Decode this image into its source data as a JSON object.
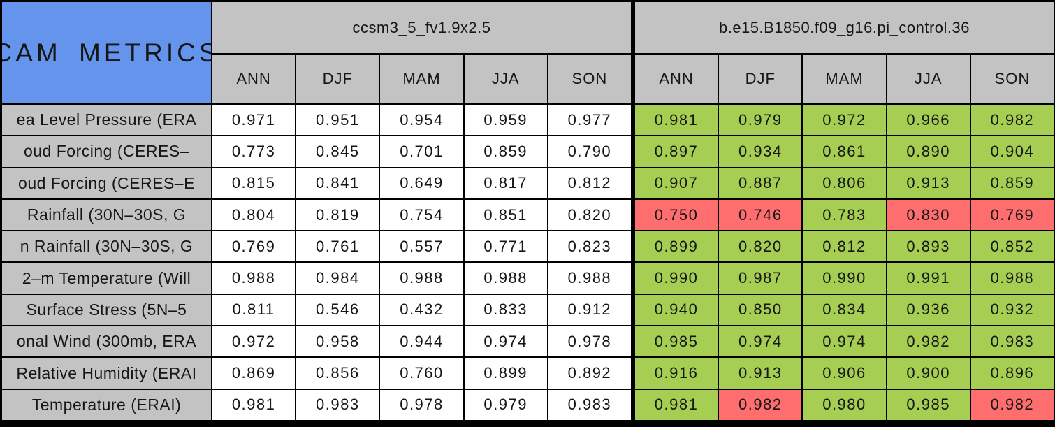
{
  "title": "CAM METRICS",
  "colors": {
    "corner_blue": "#6494ec",
    "header_gray": "#c3c3c3",
    "good_green": "#a5ce52",
    "bad_red": "#ff6e6e",
    "cell_white": "#ffffff",
    "grid_black": "#000000"
  },
  "chart_data": {
    "type": "table",
    "corner_title": "CAM METRICS",
    "model_headers": [
      "ccsm3_5_fv1.9x2.5",
      "b.e15.B1850.f09_g16.pi_control.36"
    ],
    "season_columns": [
      "ANN",
      "DJF",
      "MAM",
      "JJA",
      "SON"
    ],
    "rows": [
      {
        "label": "ea Level Pressure (ERA",
        "model1": [
          "0.971",
          "0.951",
          "0.954",
          "0.959",
          "0.977"
        ],
        "model2": [
          "0.981",
          "0.979",
          "0.972",
          "0.966",
          "0.982"
        ],
        "model2_status": [
          "green",
          "green",
          "green",
          "green",
          "green"
        ]
      },
      {
        "label": "oud Forcing (CERES–",
        "model1": [
          "0.773",
          "0.845",
          "0.701",
          "0.859",
          "0.790"
        ],
        "model2": [
          "0.897",
          "0.934",
          "0.861",
          "0.890",
          "0.904"
        ],
        "model2_status": [
          "green",
          "green",
          "green",
          "green",
          "green"
        ]
      },
      {
        "label": "oud Forcing (CERES–E",
        "model1": [
          "0.815",
          "0.841",
          "0.649",
          "0.817",
          "0.812"
        ],
        "model2": [
          "0.907",
          "0.887",
          "0.806",
          "0.913",
          "0.859"
        ],
        "model2_status": [
          "green",
          "green",
          "green",
          "green",
          "green"
        ]
      },
      {
        "label": "Rainfall (30N–30S, G",
        "model1": [
          "0.804",
          "0.819",
          "0.754",
          "0.851",
          "0.820"
        ],
        "model2": [
          "0.750",
          "0.746",
          "0.783",
          "0.830",
          "0.769"
        ],
        "model2_status": [
          "red",
          "red",
          "green",
          "red",
          "red"
        ]
      },
      {
        "label": "n Rainfall (30N–30S, G",
        "model1": [
          "0.769",
          "0.761",
          "0.557",
          "0.771",
          "0.823"
        ],
        "model2": [
          "0.899",
          "0.820",
          "0.812",
          "0.893",
          "0.852"
        ],
        "model2_status": [
          "green",
          "green",
          "green",
          "green",
          "green"
        ]
      },
      {
        "label": "2–m Temperature (Will",
        "model1": [
          "0.988",
          "0.984",
          "0.988",
          "0.988",
          "0.988"
        ],
        "model2": [
          "0.990",
          "0.987",
          "0.990",
          "0.991",
          "0.988"
        ],
        "model2_status": [
          "green",
          "green",
          "green",
          "green",
          "green"
        ]
      },
      {
        "label": "Surface Stress (5N–5",
        "model1": [
          "0.811",
          "0.546",
          "0.432",
          "0.833",
          "0.912"
        ],
        "model2": [
          "0.940",
          "0.850",
          "0.834",
          "0.936",
          "0.932"
        ],
        "model2_status": [
          "green",
          "green",
          "green",
          "green",
          "green"
        ]
      },
      {
        "label": "onal Wind (300mb, ERA",
        "model1": [
          "0.972",
          "0.958",
          "0.944",
          "0.974",
          "0.978"
        ],
        "model2": [
          "0.985",
          "0.974",
          "0.974",
          "0.982",
          "0.983"
        ],
        "model2_status": [
          "green",
          "green",
          "green",
          "green",
          "green"
        ]
      },
      {
        "label": "Relative Humidity (ERAI",
        "model1": [
          "0.869",
          "0.856",
          "0.760",
          "0.899",
          "0.892"
        ],
        "model2": [
          "0.916",
          "0.913",
          "0.906",
          "0.900",
          "0.896"
        ],
        "model2_status": [
          "green",
          "green",
          "green",
          "green",
          "green"
        ]
      },
      {
        "label": "Temperature (ERAI)",
        "model1": [
          "0.981",
          "0.983",
          "0.978",
          "0.979",
          "0.983"
        ],
        "model2": [
          "0.981",
          "0.982",
          "0.980",
          "0.985",
          "0.982"
        ],
        "model2_status": [
          "green",
          "red",
          "green",
          "green",
          "red"
        ]
      }
    ]
  }
}
